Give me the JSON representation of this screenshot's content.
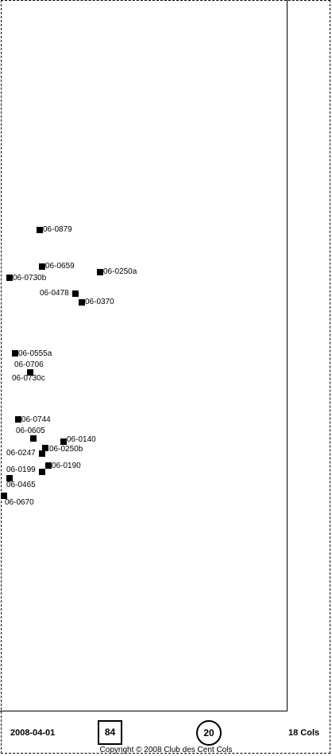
{
  "map": {
    "points": [
      {
        "id": "06-0879"
      },
      {
        "id": "06-0659"
      },
      {
        "id": "06-0250a"
      },
      {
        "id": "06-0730b"
      },
      {
        "id": "06-0478"
      },
      {
        "id": "06-0370"
      },
      {
        "id": "06-0555a"
      },
      {
        "id": "06-0706"
      },
      {
        "id": "06-0730c"
      },
      {
        "id": "06-0744"
      },
      {
        "id": "06-0605"
      },
      {
        "id": "06-0140"
      },
      {
        "id": "06-0250b"
      },
      {
        "id": "06-0247"
      },
      {
        "id": "06-0199"
      },
      {
        "id": "06-0190"
      },
      {
        "id": "06-0465"
      },
      {
        "id": "06-0670"
      }
    ]
  },
  "footer": {
    "date": "2008-04-01",
    "boxed_number": "84",
    "circled_number": "20",
    "cols_count": "18 Cols",
    "copyright": "Copyright © 2008 Club des Cent Cols"
  }
}
